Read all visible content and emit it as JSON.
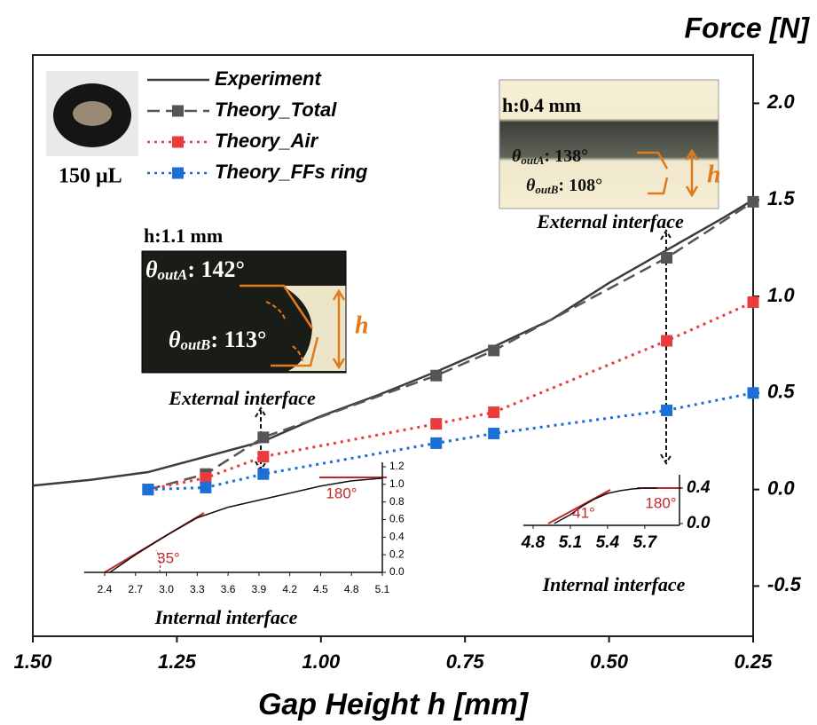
{
  "chart_data": [
    {
      "type": "line",
      "y_label": "Force [N]",
      "x_label": "Gap Height h [mm]",
      "xlim": [
        1.5,
        0.25
      ],
      "xticks": [
        {
          "value": 1.5,
          "label": "1.50"
        },
        {
          "value": 1.25,
          "label": "1.25"
        },
        {
          "value": 1,
          "label": "1.00"
        },
        {
          "value": 0.75,
          "label": "0.75"
        },
        {
          "value": 0.5,
          "label": "0.50"
        },
        {
          "value": 0.25,
          "label": "0.25"
        }
      ],
      "ylim": [
        -0.76,
        2.25
      ],
      "yticks": [
        {
          "value": -0.5,
          "label": "-0.5"
        },
        {
          "value": 0,
          "label": "0.0"
        },
        0.5,
        {
          "value": 1,
          "label": "1.0"
        },
        1.5,
        {
          "value": 2,
          "label": "2.0"
        }
      ],
      "legend": "upper left",
      "legend_image_label": "150 μL",
      "series": [
        {
          "name": "Experiment",
          "color": "#3c3c3c",
          "style": "solid",
          "marker": null,
          "x": [
            1.5,
            1.4,
            1.3,
            1.25,
            1.1,
            1.0,
            0.9,
            0.8,
            0.7,
            0.6,
            0.5,
            0.4,
            0.3,
            0.25
          ],
          "values": [
            0.02,
            0.05,
            0.09,
            0.13,
            0.25,
            0.38,
            0.49,
            0.61,
            0.74,
            0.88,
            1.07,
            1.24,
            1.41,
            1.5
          ]
        },
        {
          "name": "Theory_Total",
          "color": "#555555",
          "style": "dashed",
          "marker": "square",
          "x": [
            1.3,
            1.2,
            1.1,
            0.8,
            0.7,
            0.4,
            0.25
          ],
          "values": [
            0.0,
            0.08,
            0.27,
            0.59,
            0.72,
            1.2,
            1.49
          ]
        },
        {
          "name": "Theory_Air",
          "color": "#ea3b3e",
          "style": "dotted",
          "marker": "square",
          "x": [
            1.3,
            1.2,
            1.1,
            0.8,
            0.7,
            0.4,
            0.25
          ],
          "values": [
            0.0,
            0.06,
            0.17,
            0.34,
            0.4,
            0.77,
            0.97
          ]
        },
        {
          "name": "Theory_FFs ring",
          "color": "#1c6fd6",
          "style": "dotted",
          "marker": "square",
          "x": [
            1.3,
            1.2,
            1.1,
            0.8,
            0.7,
            0.4,
            0.25
          ],
          "values": [
            0.0,
            0.01,
            0.08,
            0.24,
            0.29,
            0.41,
            0.5
          ]
        }
      ],
      "panels": [
        {
          "h_label": "h:1.1 mm",
          "gap_label": "h",
          "caption": "External interface",
          "angles": [
            {
              "symbol": "θ",
              "subscript": "outA",
              "text": ": 142°"
            },
            {
              "symbol": "θ",
              "subscript": "outB",
              "text": ": 113°"
            }
          ]
        },
        {
          "h_label": "h:0.4 mm",
          "gap_label": "h",
          "caption": "External interface",
          "angles": [
            {
              "symbol": "θ",
              "subscript": "outA",
              "text": ": 138°"
            },
            {
              "symbol": "θ",
              "subscript": "outB",
              "text": ": 108°"
            }
          ]
        }
      ]
    },
    {
      "type": "line",
      "x_label": "Internal interface",
      "xlim": [
        2.2,
        5.1
      ],
      "xticks": [
        2.4,
        2.7,
        {
          "value": 3,
          "label": "3.0"
        },
        3.3,
        3.6,
        3.9,
        4.2,
        4.5,
        4.8,
        5.1
      ],
      "ylim": [
        0,
        1.25
      ],
      "yticks": [
        {
          "value": 0,
          "label": "0.0"
        },
        0.2,
        0.4,
        0.6,
        0.8,
        {
          "value": 1,
          "label": "1.0"
        },
        1.2
      ],
      "series": [
        {
          "color": "#111111",
          "x": [
            2.45,
            2.7,
            3.0,
            3.3,
            3.6,
            3.9,
            4.2,
            4.5,
            4.8,
            5.1
          ],
          "values": [
            0,
            0.2,
            0.42,
            0.62,
            0.74,
            0.82,
            0.9,
            0.98,
            1.04,
            1.07
          ]
        }
      ],
      "annotations": [
        {
          "text": "35°",
          "color": "#c0282a"
        },
        {
          "text": "180°",
          "color": "#c0282a"
        }
      ]
    },
    {
      "type": "line",
      "x_label": "Internal interface",
      "xlim": [
        4.72,
        5.98
      ],
      "xticks": [
        4.8,
        5.1,
        5.4,
        5.7
      ],
      "ylim": [
        -0.02,
        0.55
      ],
      "yticks": [
        {
          "value": 0,
          "label": "0.0"
        },
        0.4
      ],
      "series": [
        {
          "color": "#111111",
          "x": [
            4.97,
            5.1,
            5.2,
            5.3,
            5.4,
            5.5,
            5.6,
            5.7,
            5.8
          ],
          "values": [
            0,
            0.1,
            0.2,
            0.28,
            0.34,
            0.37,
            0.39,
            0.4,
            0.4
          ]
        }
      ],
      "annotations": [
        {
          "text": "41°",
          "color": "#c0282a"
        },
        {
          "text": "180°",
          "color": "#c0282a"
        }
      ]
    }
  ]
}
